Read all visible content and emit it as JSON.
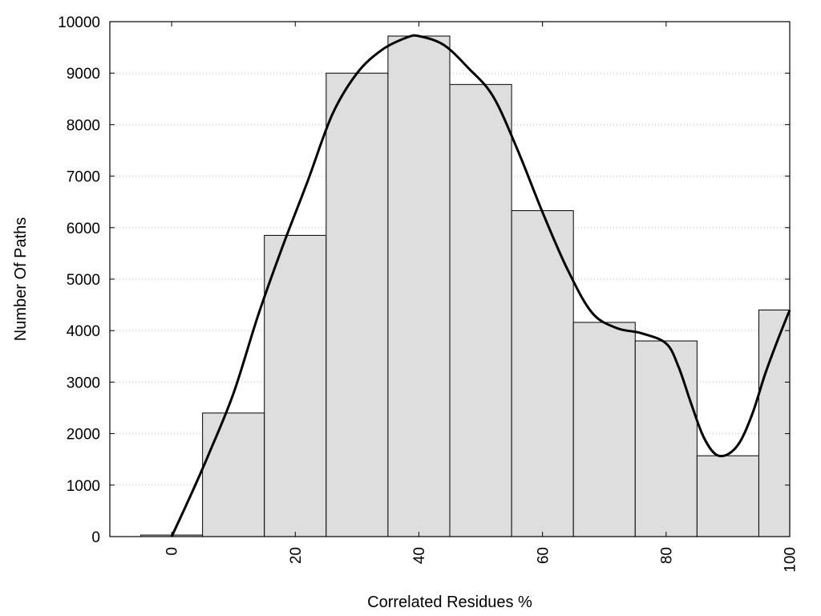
{
  "chart_data": {
    "type": "bar",
    "xlabel": "Correlated Residues %",
    "ylabel": "Number Of Paths",
    "xlim": [
      -10,
      100
    ],
    "ylim": [
      0,
      10000
    ],
    "x_ticks": [
      0,
      20,
      40,
      60,
      80,
      100
    ],
    "y_ticks": [
      0,
      1000,
      2000,
      3000,
      4000,
      5000,
      6000,
      7000,
      8000,
      9000,
      10000
    ],
    "bin_width": 10,
    "bins": [
      0,
      10,
      20,
      30,
      40,
      50,
      60,
      70,
      80,
      90,
      100
    ],
    "values": [
      30,
      2400,
      5850,
      9000,
      9720,
      8780,
      6330,
      4160,
      3800,
      1570,
      4400
    ],
    "smoothed_curve": {
      "x": [
        0,
        3,
        6,
        10,
        14,
        18,
        22,
        26,
        30,
        34,
        38,
        40,
        44,
        48,
        52,
        56,
        60,
        64,
        68,
        72,
        76,
        80,
        82,
        84,
        86,
        88,
        90,
        92,
        94,
        96,
        98,
        100
      ],
      "y": [
        0,
        780,
        1600,
        2780,
        4300,
        5650,
        6900,
        8200,
        9000,
        9450,
        9690,
        9720,
        9550,
        9100,
        8550,
        7500,
        6300,
        5200,
        4350,
        4050,
        3950,
        3750,
        3300,
        2600,
        1950,
        1600,
        1600,
        1850,
        2400,
        3150,
        3800,
        4400
      ]
    },
    "grid": "horizontal dotted",
    "legend": "none"
  }
}
